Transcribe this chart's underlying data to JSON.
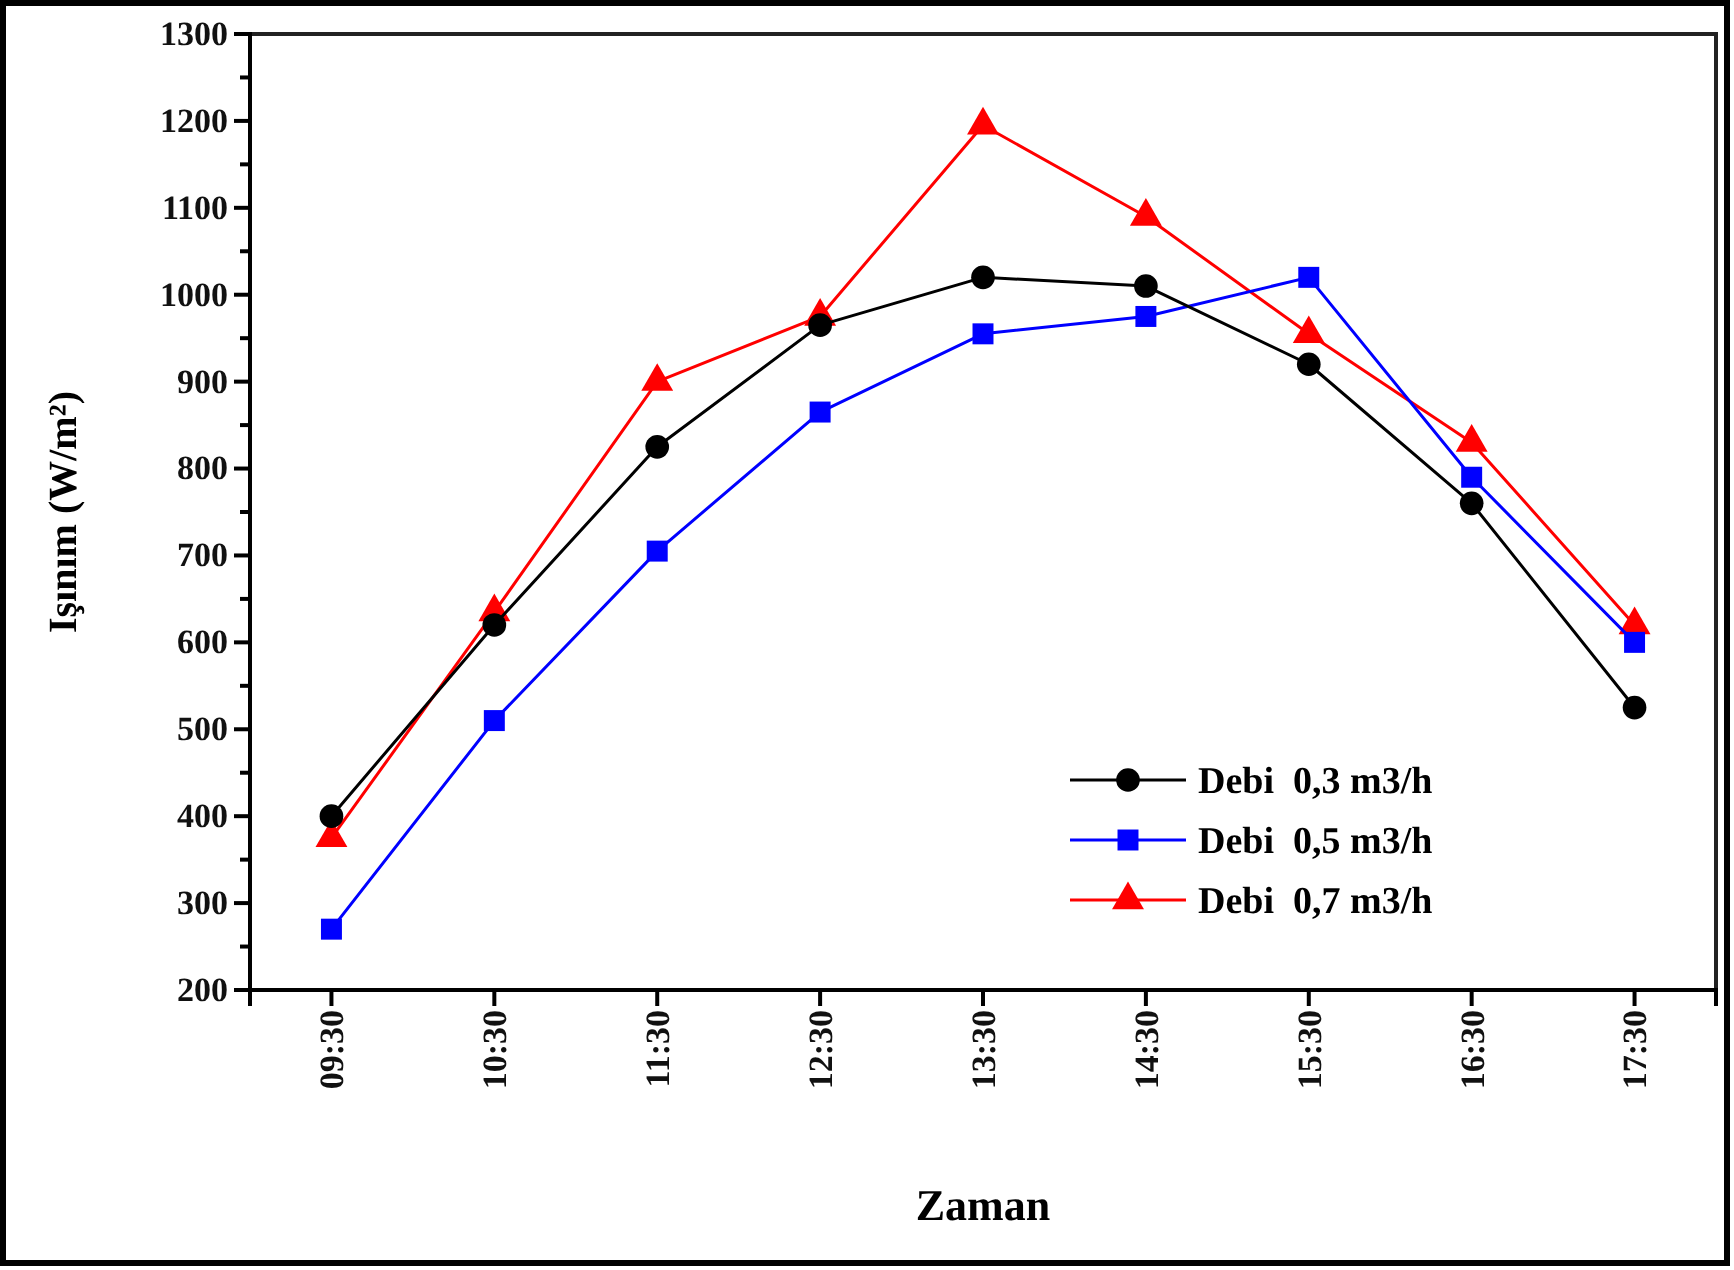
{
  "chart_data": {
    "type": "line",
    "xlabel": "Zaman",
    "ylabel": "Işınım (W/m²)",
    "categories": [
      "09:30",
      "10:30",
      "11:30",
      "12:30",
      "13:30",
      "14:30",
      "15:30",
      "16:30",
      "17:30"
    ],
    "series": [
      {
        "name": "Debi  0,3 m3/h",
        "color": "#000000",
        "marker": "circle",
        "values": [
          400,
          620,
          825,
          965,
          1020,
          1010,
          920,
          760,
          525
        ]
      },
      {
        "name": "Debi  0,5 m3/h",
        "color": "#0000ff",
        "marker": "square",
        "values": [
          270,
          510,
          705,
          865,
          955,
          975,
          1020,
          790,
          600
        ]
      },
      {
        "name": "Debi  0,7 m3/h",
        "color": "#ff0000",
        "marker": "triangle",
        "values": [
          375,
          635,
          900,
          975,
          1195,
          1090,
          955,
          830,
          620
        ]
      }
    ],
    "ylim": [
      200,
      1300
    ],
    "yticks": [
      200,
      {
        "value": 250,
        "label": null
      },
      300,
      {
        "value": 350,
        "label": null
      },
      400,
      {
        "value": 450,
        "label": null
      },
      500,
      {
        "value": 550,
        "label": null
      },
      600,
      {
        "value": 650,
        "label": null
      },
      700,
      {
        "value": 750,
        "label": null
      },
      800,
      {
        "value": 850,
        "label": null
      },
      900,
      {
        "value": 950,
        "label": null
      },
      1000,
      {
        "value": 1050,
        "label": null
      },
      1100,
      {
        "value": 1150,
        "label": null
      },
      1200,
      {
        "value": 1250,
        "label": null
      },
      1300
    ],
    "legend": "bottom right",
    "line_style": "solid",
    "grid": false
  }
}
